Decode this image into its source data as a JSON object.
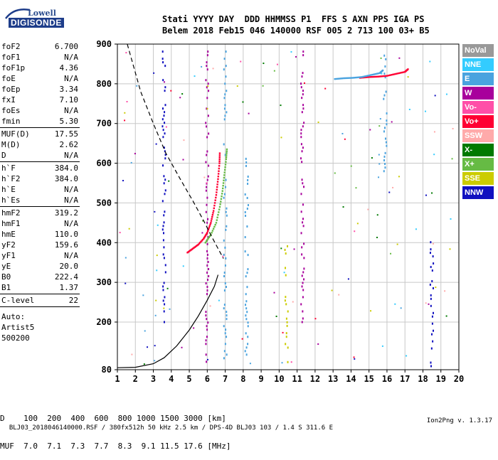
{
  "logo": {
    "line1": "Lowell",
    "line2": "DIGISONDE"
  },
  "header": {
    "line1": "Stati YYYY DAY  DDD HHMMSS P1  FFS S AXN PPS IGA PS",
    "line2": "Belem 2018 Feb15 046 140000 RSF 005 2 713 100 03+ B5"
  },
  "params": {
    "group1": [
      {
        "name": "foF2",
        "value": "6.700"
      },
      {
        "name": "foF1",
        "value": "N/A"
      },
      {
        "name": "foF1p",
        "value": "4.36"
      },
      {
        "name": "foE",
        "value": "N/A"
      },
      {
        "name": "foEp",
        "value": "3.34"
      },
      {
        "name": "fxI",
        "value": "7.10"
      },
      {
        "name": "foEs",
        "value": "N/A"
      },
      {
        "name": "fmin",
        "value": "5.30"
      }
    ],
    "group2": [
      {
        "name": "MUF(D)",
        "value": "17.55"
      },
      {
        "name": "M(D)",
        "value": "2.62"
      },
      {
        "name": "D",
        "value": "N/A"
      }
    ],
    "group3": [
      {
        "name": "h`F",
        "value": "384.0"
      },
      {
        "name": "h`F2",
        "value": "384.0"
      },
      {
        "name": "h`E",
        "value": "N/A"
      },
      {
        "name": "h`Es",
        "value": "N/A"
      }
    ],
    "group4": [
      {
        "name": "hmF2",
        "value": "319.2"
      },
      {
        "name": "hmF1",
        "value": "N/A"
      },
      {
        "name": "hmE",
        "value": "110.0"
      },
      {
        "name": "yF2",
        "value": "159.6"
      },
      {
        "name": "yF1",
        "value": "N/A"
      },
      {
        "name": "yE",
        "value": "20.0"
      },
      {
        "name": "B0",
        "value": "222.4"
      },
      {
        "name": "B1",
        "value": "1.37"
      }
    ],
    "group5": [
      {
        "name": "C-level",
        "value": "22"
      }
    ]
  },
  "auto": {
    "line1": "Auto:",
    "line2": "Artist5",
    "line3": "500200"
  },
  "distance": {
    "line1": "D    100  200  400  600  800 1000 1500 3000 [km]",
    "line2": "MUF  7.0  7.1  7.3  7.7  8.3  9.1 11.5 17.6 [MHz]"
  },
  "footer": {
    "left": "BLJ03_2018046140000.RSF / 380fx512h 50 kHz 2.5 km / DPS-4D BLJ03 103 / 1.4 S 311.6 E",
    "right": "Ion2Png v. 1.3.17"
  },
  "legend": [
    {
      "label": "NoVal",
      "color": "#999999"
    },
    {
      "label": "NNE",
      "color": "#33ccff"
    },
    {
      "label": "E",
      "color": "#4aa3df"
    },
    {
      "label": "W",
      "color": "#a8009c"
    },
    {
      "label": "Vo-",
      "color": "#ff4fa8"
    },
    {
      "label": "Vo+",
      "color": "#ff0033"
    },
    {
      "label": "SSW",
      "color": "#ffaaaa"
    },
    {
      "label": "X-",
      "color": "#007a00"
    },
    {
      "label": "X+",
      "color": "#66bb44"
    },
    {
      "label": "SSE",
      "color": "#cccc00"
    },
    {
      "label": "NNW",
      "color": "#1010c0"
    }
  ],
  "chart_data": {
    "type": "scatter",
    "title": "",
    "xlabel": "",
    "ylabel": "",
    "xlim": [
      1,
      20
    ],
    "ylim": [
      80,
      900
    ],
    "xticks": [
      "1",
      "2",
      "3",
      "4",
      "5",
      "6",
      "7",
      "8",
      "9",
      "10",
      "11",
      "12",
      "13",
      "14",
      "15",
      "16",
      "17",
      "18",
      "19",
      "20"
    ],
    "yticks": [
      "80",
      "200",
      "300",
      "400",
      "500",
      "600",
      "700",
      "800",
      "900"
    ],
    "grid": true,
    "ordinary_trace": [
      {
        "f": 4.9,
        "h": 375
      },
      {
        "f": 5.2,
        "h": 385
      },
      {
        "f": 5.5,
        "h": 395
      },
      {
        "f": 5.8,
        "h": 410
      },
      {
        "f": 6.0,
        "h": 425
      },
      {
        "f": 6.2,
        "h": 450
      },
      {
        "f": 6.35,
        "h": 480
      },
      {
        "f": 6.5,
        "h": 520
      },
      {
        "f": 6.6,
        "h": 560
      },
      {
        "f": 6.68,
        "h": 600
      },
      {
        "f": 6.7,
        "h": 630
      }
    ],
    "extraordinary_trace": [
      {
        "f": 5.9,
        "h": 400
      },
      {
        "f": 6.2,
        "h": 420
      },
      {
        "f": 6.5,
        "h": 450
      },
      {
        "f": 6.7,
        "h": 490
      },
      {
        "f": 6.85,
        "h": 530
      },
      {
        "f": 6.95,
        "h": 570
      },
      {
        "f": 7.05,
        "h": 610
      },
      {
        "f": 7.1,
        "h": 640
      }
    ],
    "sporadic_trace": [
      {
        "f": 14.5,
        "h": 815
      },
      {
        "f": 15.0,
        "h": 817
      },
      {
        "f": 15.5,
        "h": 818
      },
      {
        "f": 16.0,
        "h": 820
      },
      {
        "f": 16.5,
        "h": 825
      },
      {
        "f": 17.0,
        "h": 830
      },
      {
        "f": 17.2,
        "h": 838
      }
    ],
    "profile_curve": [
      {
        "f": 1.0,
        "h": 85
      },
      {
        "f": 2.0,
        "h": 86
      },
      {
        "f": 3.0,
        "h": 95
      },
      {
        "f": 3.6,
        "h": 110
      },
      {
        "f": 4.3,
        "h": 140
      },
      {
        "f": 5.0,
        "h": 180
      },
      {
        "f": 5.5,
        "h": 215
      },
      {
        "f": 6.0,
        "h": 255
      },
      {
        "f": 6.4,
        "h": 290
      },
      {
        "f": 6.6,
        "h": 319
      }
    ],
    "dashed_curve": [
      {
        "f": 1.55,
        "h": 900
      },
      {
        "f": 2.3,
        "h": 780
      },
      {
        "f": 3.0,
        "h": 700
      },
      {
        "f": 3.7,
        "h": 625
      },
      {
        "f": 4.5,
        "h": 560
      },
      {
        "f": 5.2,
        "h": 505
      },
      {
        "f": 5.8,
        "h": 455
      },
      {
        "f": 6.25,
        "h": 415
      },
      {
        "f": 6.6,
        "h": 385
      },
      {
        "f": 6.9,
        "h": 360
      }
    ],
    "scattered_columns": [
      {
        "f": 3.6,
        "h_from": 200,
        "h_to": 890,
        "mode": "NNW"
      },
      {
        "f": 6.0,
        "h_from": 100,
        "h_to": 890,
        "mode": "W"
      },
      {
        "f": 7.0,
        "h_from": 100,
        "h_to": 890,
        "mode": "E"
      },
      {
        "f": 8.2,
        "h_from": 100,
        "h_to": 620,
        "mode": "E"
      },
      {
        "f": 10.4,
        "h_from": 90,
        "h_to": 400,
        "mode": "SSE"
      },
      {
        "f": 11.3,
        "h_from": 200,
        "h_to": 890,
        "mode": "W"
      },
      {
        "f": 15.9,
        "h_from": 580,
        "h_to": 880,
        "mode": "E"
      },
      {
        "f": 18.5,
        "h_from": 80,
        "h_to": 410,
        "mode": "NNW"
      }
    ]
  }
}
